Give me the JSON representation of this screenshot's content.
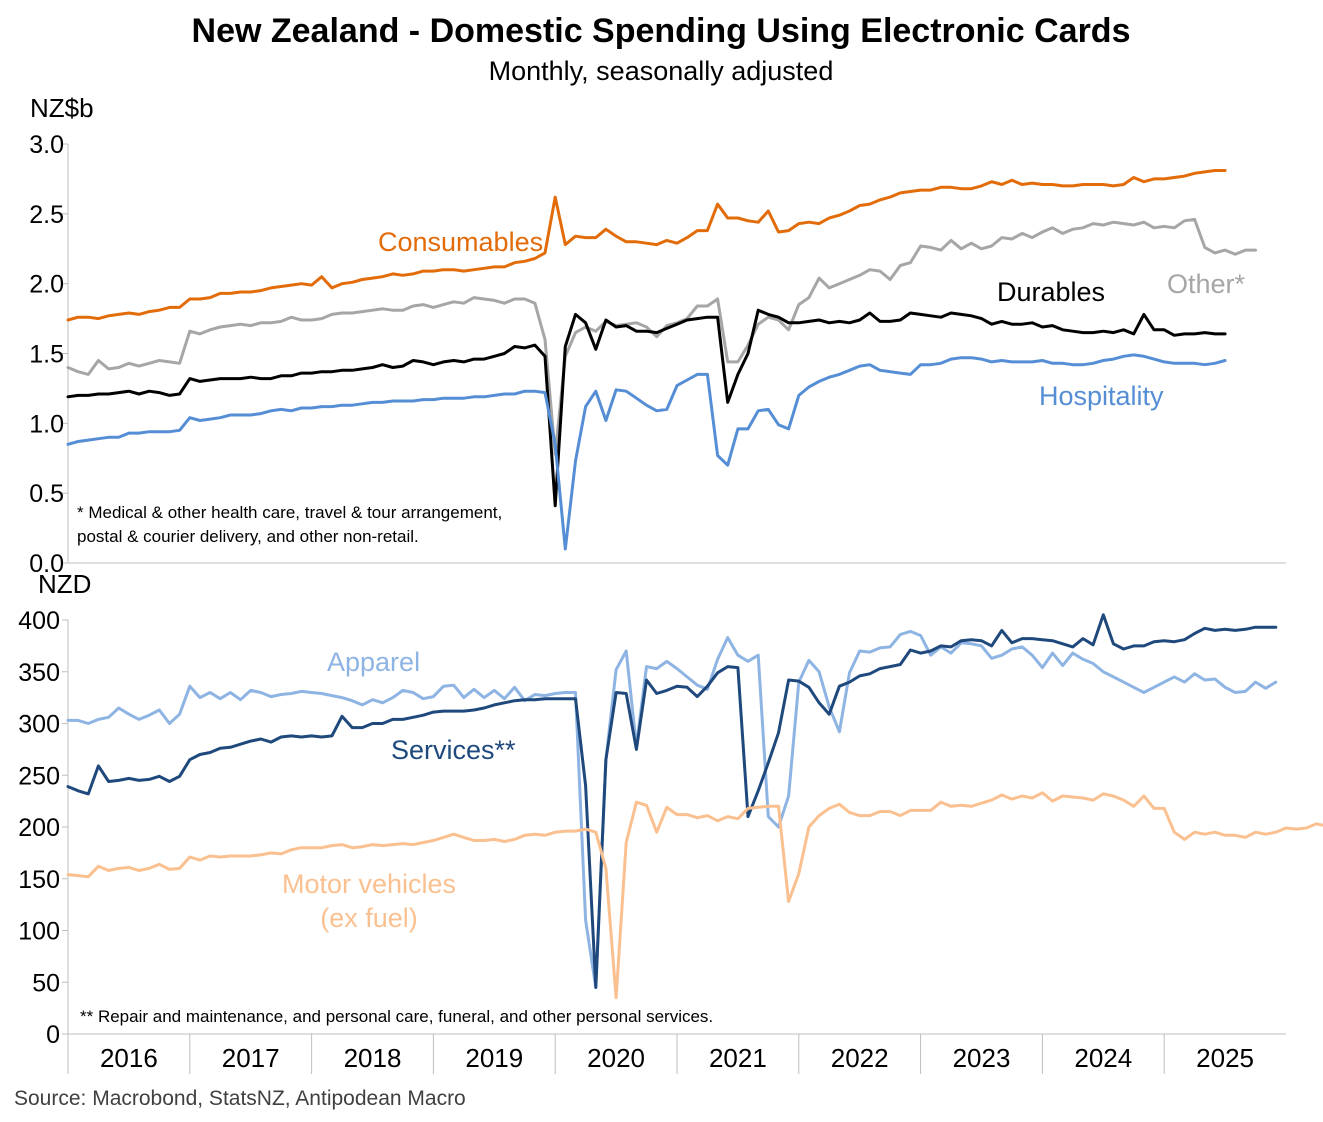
{
  "title": "New Zealand - Domestic Spending Using Electronic Cards",
  "subtitle": "Monthly, seasonally adjusted",
  "source": "Source: Macrobond, StatsNZ, Antipodean Macro",
  "colors": {
    "consumables": "#e36c0a",
    "other": "#a6a6a6",
    "durables": "#000000",
    "hospitality": "#558ed5",
    "apparel": "#8eb4e3",
    "services": "#1f497d",
    "motor_vehicles": "#fac090"
  },
  "chart_data": [
    {
      "type": "line",
      "unit_label": "NZ$b",
      "ylim": [
        0,
        3.0
      ],
      "yticks": [
        0.0,
        0.5,
        1.0,
        1.5,
        2.0,
        2.5,
        3.0
      ],
      "ytick_labels": [
        "0.0",
        "0.5",
        "1.0",
        "1.5",
        "2.0",
        "2.5",
        "3.0"
      ],
      "footnote_lines": [
        "* Medical & other health care, travel & tour arrangement,",
        "postal & courier delivery, and other non-retail."
      ],
      "x_start": 2015.5,
      "x_step": 0.0833333,
      "series": [
        {
          "name": "Consumables",
          "key": "consumables",
          "values": [
            1.74,
            1.76,
            1.76,
            1.75,
            1.77,
            1.78,
            1.79,
            1.78,
            1.8,
            1.81,
            1.83,
            1.83,
            1.89,
            1.89,
            1.9,
            1.93,
            1.93,
            1.94,
            1.94,
            1.95,
            1.97,
            1.98,
            1.99,
            2.0,
            1.99,
            2.05,
            1.97,
            2.0,
            2.01,
            2.03,
            2.04,
            2.05,
            2.07,
            2.06,
            2.07,
            2.09,
            2.09,
            2.1,
            2.1,
            2.09,
            2.1,
            2.11,
            2.12,
            2.12,
            2.15,
            2.16,
            2.18,
            2.22,
            2.62,
            2.28,
            2.34,
            2.33,
            2.33,
            2.39,
            2.34,
            2.3,
            2.3,
            2.29,
            2.28,
            2.31,
            2.29,
            2.33,
            2.38,
            2.38,
            2.57,
            2.47,
            2.47,
            2.45,
            2.44,
            2.52,
            2.37,
            2.38,
            2.43,
            2.44,
            2.43,
            2.47,
            2.49,
            2.52,
            2.56,
            2.57,
            2.6,
            2.62,
            2.65,
            2.66,
            2.67,
            2.67,
            2.69,
            2.69,
            2.68,
            2.68,
            2.7,
            2.73,
            2.71,
            2.74,
            2.71,
            2.72,
            2.71,
            2.71,
            2.7,
            2.7,
            2.71,
            2.71,
            2.71,
            2.7,
            2.71,
            2.76,
            2.73,
            2.75,
            2.75,
            2.76,
            2.77,
            2.79,
            2.8,
            2.81,
            2.81
          ]
        },
        {
          "name": "Other*",
          "key": "other",
          "values": [
            1.4,
            1.37,
            1.35,
            1.45,
            1.39,
            1.4,
            1.43,
            1.41,
            1.43,
            1.45,
            1.44,
            1.43,
            1.66,
            1.64,
            1.67,
            1.69,
            1.7,
            1.71,
            1.7,
            1.72,
            1.72,
            1.73,
            1.76,
            1.74,
            1.74,
            1.75,
            1.78,
            1.79,
            1.79,
            1.8,
            1.81,
            1.82,
            1.81,
            1.81,
            1.84,
            1.85,
            1.83,
            1.85,
            1.87,
            1.86,
            1.9,
            1.89,
            1.88,
            1.86,
            1.89,
            1.89,
            1.86,
            1.6,
            0.78,
            1.48,
            1.65,
            1.69,
            1.66,
            1.73,
            1.7,
            1.71,
            1.72,
            1.69,
            1.62,
            1.7,
            1.72,
            1.75,
            1.84,
            1.84,
            1.89,
            1.44,
            1.44,
            1.56,
            1.71,
            1.76,
            1.74,
            1.67,
            1.85,
            1.9,
            2.04,
            1.97,
            2.0,
            2.03,
            2.06,
            2.1,
            2.09,
            2.03,
            2.13,
            2.15,
            2.27,
            2.26,
            2.24,
            2.31,
            2.25,
            2.29,
            2.25,
            2.27,
            2.33,
            2.32,
            2.36,
            2.33,
            2.37,
            2.4,
            2.36,
            2.39,
            2.4,
            2.43,
            2.42,
            2.44,
            2.43,
            2.42,
            2.44,
            2.4,
            2.41,
            2.4,
            2.45,
            2.46,
            2.26,
            2.22,
            2.24,
            2.21,
            2.24,
            2.24
          ]
        },
        {
          "name": "Durables",
          "key": "durables",
          "values": [
            1.19,
            1.2,
            1.2,
            1.21,
            1.21,
            1.22,
            1.23,
            1.21,
            1.23,
            1.22,
            1.2,
            1.21,
            1.32,
            1.3,
            1.31,
            1.32,
            1.32,
            1.32,
            1.33,
            1.32,
            1.32,
            1.34,
            1.34,
            1.36,
            1.36,
            1.37,
            1.37,
            1.38,
            1.38,
            1.39,
            1.4,
            1.42,
            1.4,
            1.41,
            1.45,
            1.44,
            1.42,
            1.44,
            1.45,
            1.44,
            1.46,
            1.46,
            1.48,
            1.5,
            1.55,
            1.54,
            1.56,
            1.48,
            0.41,
            1.55,
            1.78,
            1.72,
            1.53,
            1.74,
            1.69,
            1.7,
            1.66,
            1.66,
            1.65,
            1.68,
            1.71,
            1.74,
            1.75,
            1.76,
            1.76,
            1.15,
            1.35,
            1.5,
            1.81,
            1.78,
            1.76,
            1.72,
            1.72,
            1.73,
            1.74,
            1.72,
            1.73,
            1.72,
            1.74,
            1.79,
            1.73,
            1.73,
            1.74,
            1.79,
            1.78,
            1.77,
            1.76,
            1.79,
            1.78,
            1.77,
            1.75,
            1.71,
            1.73,
            1.71,
            1.71,
            1.72,
            1.69,
            1.7,
            1.67,
            1.66,
            1.65,
            1.65,
            1.66,
            1.65,
            1.67,
            1.64,
            1.78,
            1.67,
            1.67,
            1.63,
            1.64,
            1.64,
            1.65,
            1.64,
            1.64
          ]
        },
        {
          "name": "Hospitality",
          "key": "hospitality",
          "values": [
            0.85,
            0.87,
            0.88,
            0.89,
            0.9,
            0.9,
            0.93,
            0.93,
            0.94,
            0.94,
            0.94,
            0.95,
            1.04,
            1.02,
            1.03,
            1.04,
            1.06,
            1.06,
            1.06,
            1.07,
            1.09,
            1.1,
            1.09,
            1.11,
            1.11,
            1.12,
            1.12,
            1.13,
            1.13,
            1.14,
            1.15,
            1.15,
            1.16,
            1.16,
            1.16,
            1.17,
            1.17,
            1.18,
            1.18,
            1.18,
            1.19,
            1.19,
            1.2,
            1.21,
            1.21,
            1.23,
            1.23,
            1.22,
            0.85,
            0.1,
            0.73,
            1.12,
            1.23,
            1.02,
            1.24,
            1.23,
            1.18,
            1.13,
            1.09,
            1.1,
            1.27,
            1.31,
            1.35,
            1.35,
            0.77,
            0.7,
            0.96,
            0.96,
            1.09,
            1.1,
            0.99,
            0.96,
            1.2,
            1.26,
            1.3,
            1.33,
            1.35,
            1.38,
            1.41,
            1.42,
            1.38,
            1.37,
            1.36,
            1.35,
            1.42,
            1.42,
            1.43,
            1.46,
            1.47,
            1.47,
            1.46,
            1.44,
            1.45,
            1.44,
            1.44,
            1.44,
            1.45,
            1.43,
            1.43,
            1.42,
            1.42,
            1.43,
            1.45,
            1.46,
            1.48,
            1.49,
            1.48,
            1.46,
            1.44,
            1.43,
            1.43,
            1.43,
            1.42,
            1.43,
            1.45
          ]
        }
      ],
      "labels": {
        "consumables": "Consumables",
        "durables": "Durables",
        "other": "Other*",
        "hospitality": "Hospitality"
      }
    },
    {
      "type": "line",
      "unit_label": "NZD",
      "ylim": [
        0,
        400
      ],
      "yticks": [
        0,
        50,
        100,
        150,
        200,
        250,
        300,
        350,
        400
      ],
      "ytick_labels": [
        "0",
        "50",
        "100",
        "150",
        "200",
        "250",
        "300",
        "350",
        "400"
      ],
      "footnote_lines": [
        "** Repair and maintenance, and personal care, funeral, and other personal services."
      ],
      "xtick_labels": [
        "2016",
        "2017",
        "2018",
        "2019",
        "2020",
        "2021",
        "2022",
        "2023",
        "2024",
        "2025"
      ],
      "x_start": 2015.5,
      "x_step": 0.0833333,
      "series": [
        {
          "name": "Apparel",
          "key": "apparel",
          "values": [
            303,
            303,
            300,
            304,
            306,
            315,
            309,
            304,
            308,
            313,
            300,
            309,
            336,
            325,
            330,
            324,
            330,
            323,
            332,
            330,
            326,
            328,
            329,
            331,
            330,
            329,
            327,
            325,
            322,
            318,
            323,
            320,
            325,
            332,
            330,
            324,
            326,
            336,
            337,
            325,
            333,
            325,
            332,
            324,
            335,
            322,
            328,
            327,
            329,
            330,
            330,
            110,
            45,
            265,
            352,
            370,
            278,
            355,
            353,
            360,
            353,
            345,
            337,
            333,
            362,
            383,
            366,
            360,
            366,
            210,
            200,
            230,
            340,
            361,
            350,
            316,
            292,
            349,
            370,
            369,
            373,
            374,
            386,
            389,
            385,
            366,
            374,
            368,
            378,
            377,
            375,
            363,
            366,
            372,
            374,
            366,
            354,
            368,
            356,
            368,
            362,
            358,
            350,
            345,
            340,
            335,
            330,
            335,
            340,
            345,
            340,
            348,
            342,
            343,
            335,
            330,
            331,
            340,
            334,
            340
          ]
        },
        {
          "name": "Services**",
          "key": "services",
          "values": [
            239,
            235,
            232,
            259,
            244,
            245,
            247,
            245,
            246,
            249,
            244,
            249,
            265,
            270,
            272,
            276,
            277,
            280,
            283,
            285,
            282,
            287,
            288,
            287,
            288,
            287,
            288,
            307,
            296,
            296,
            300,
            300,
            304,
            304,
            306,
            308,
            311,
            312,
            312,
            312,
            313,
            315,
            318,
            320,
            322,
            323,
            323,
            324,
            324,
            324,
            324,
            240,
            45,
            265,
            330,
            329,
            275,
            342,
            329,
            332,
            336,
            335,
            326,
            336,
            349,
            355,
            354,
            210,
            235,
            262,
            291,
            342,
            341,
            335,
            320,
            309,
            336,
            340,
            346,
            348,
            353,
            355,
            357,
            371,
            368,
            370,
            375,
            374,
            380,
            381,
            380,
            375,
            390,
            378,
            382,
            382,
            381,
            380,
            377,
            374,
            382,
            376,
            405,
            377,
            372,
            375,
            375,
            379,
            380,
            379,
            381,
            387,
            392,
            390,
            391,
            390,
            391,
            393,
            393,
            393
          ]
        },
        {
          "name": "Motor vehicles (ex fuel)",
          "key": "motor_vehicles",
          "values": [
            154,
            153,
            152,
            162,
            158,
            160,
            161,
            158,
            160,
            164,
            159,
            160,
            171,
            168,
            172,
            171,
            172,
            172,
            172,
            173,
            175,
            174,
            178,
            180,
            180,
            180,
            182,
            183,
            180,
            181,
            183,
            182,
            183,
            184,
            183,
            185,
            187,
            190,
            193,
            190,
            187,
            187,
            188,
            186,
            188,
            192,
            193,
            192,
            195,
            196,
            196,
            198,
            195,
            160,
            35,
            185,
            224,
            221,
            195,
            219,
            212,
            212,
            209,
            211,
            206,
            210,
            208,
            218,
            219,
            220,
            220,
            128,
            155,
            200,
            211,
            218,
            222,
            214,
            211,
            211,
            215,
            215,
            211,
            216,
            216,
            216,
            224,
            220,
            221,
            220,
            223,
            226,
            231,
            227,
            230,
            228,
            233,
            225,
            230,
            229,
            228,
            226,
            232,
            230,
            226,
            220,
            230,
            218,
            218,
            195,
            188,
            195,
            193,
            195,
            192,
            192,
            190,
            195,
            193,
            195,
            199,
            198,
            199,
            203,
            201
          ]
        }
      ],
      "labels": {
        "apparel": "Apparel",
        "services": "Services**",
        "motor_line1": "Motor vehicles",
        "motor_line2": "(ex fuel)"
      }
    }
  ]
}
